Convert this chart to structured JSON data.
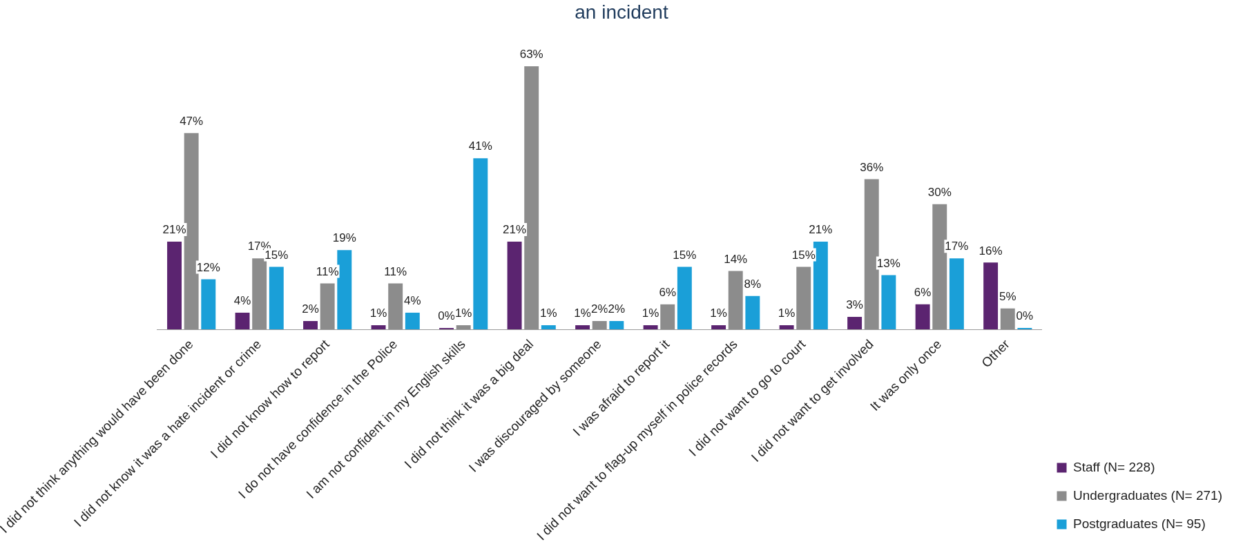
{
  "chart_data": {
    "type": "bar",
    "title": "an incident",
    "categories": [
      "I did not think anything would have been done",
      "I did not know it was a hate incident or crime",
      "I did not know how to report",
      "I do not have confidence in the Police",
      "I am not confident in my English skills",
      "I did not think it was a big deal",
      "I was discouraged by someone",
      "I was afraid to report it",
      "I did not want to flag-up myself in police records",
      "I did not want to go to court",
      "I did not want to get involved",
      "It was only once",
      "Other"
    ],
    "series": [
      {
        "name": "Staff (N= 228)",
        "color": "#5b2470",
        "values": [
          21,
          4,
          2,
          1,
          0,
          21,
          1,
          1,
          1,
          1,
          3,
          6,
          16
        ],
        "value_labels": [
          "21%",
          "4%",
          "2%",
          "1%",
          "0%",
          "21%",
          "1%",
          "1%",
          "1%",
          "1%",
          "3%",
          "6%",
          "16%"
        ]
      },
      {
        "name": "Undergraduates (N= 271)",
        "color": "#8c8c8c",
        "values": [
          47,
          17,
          11,
          11,
          1,
          63,
          2,
          6,
          14,
          15,
          36,
          30,
          5
        ],
        "value_labels": [
          "47%",
          "17%",
          "11%",
          "11%",
          "1%",
          "63%",
          "2%",
          "6%",
          "14%",
          "15%",
          "36%",
          "30%",
          "5%"
        ]
      },
      {
        "name": "Postgraduates (N= 95)",
        "color": "#1a9fd8",
        "values": [
          12,
          15,
          19,
          4,
          41,
          1,
          2,
          15,
          8,
          21,
          13,
          17,
          0
        ],
        "value_labels": [
          "12%",
          "15%",
          "19%",
          "4%",
          "41%",
          "1%",
          "2%",
          "15%",
          "8%",
          "21%",
          "13%",
          "17%",
          "0%"
        ]
      }
    ],
    "legend": "bottom right",
    "grid": false
  }
}
